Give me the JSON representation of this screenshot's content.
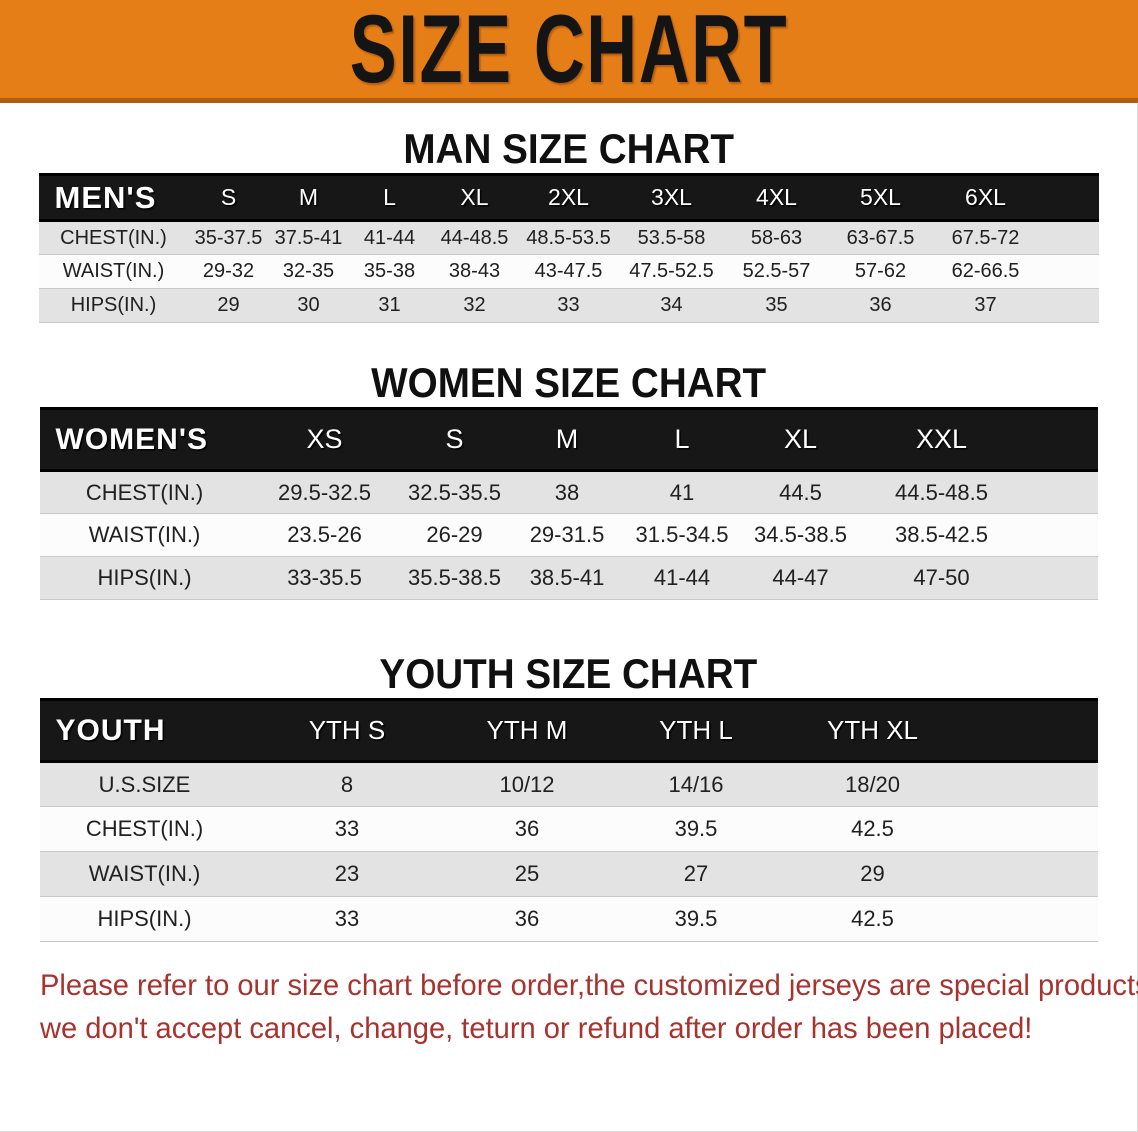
{
  "banner": {
    "title": "SIZE CHART"
  },
  "sections": [
    {
      "heading": "MAN SIZE CHART",
      "table": {
        "header_label": "MEN'S",
        "sizes": [
          "S",
          "M",
          "L",
          "XL",
          "2XL",
          "3XL",
          "4XL",
          "5XL",
          "6XL"
        ],
        "rows": [
          {
            "label": "CHEST(IN.)",
            "values": [
              "35-37.5",
              "37.5-41",
              "41-44",
              "44-48.5",
              "48.5-53.5",
              "53.5-58",
              "58-63",
              "63-67.5",
              "67.5-72"
            ]
          },
          {
            "label": "WAIST(IN.)",
            "values": [
              "29-32",
              "32-35",
              "35-38",
              "38-43",
              "43-47.5",
              "47.5-52.5",
              "52.5-57",
              "57-62",
              "62-66.5"
            ]
          },
          {
            "label": "HIPS(IN.)",
            "values": [
              "29",
              "30",
              "31",
              "32",
              "33",
              "34",
              "35",
              "36",
              "37"
            ]
          }
        ]
      }
    },
    {
      "heading": "WOMEN SIZE CHART",
      "table": {
        "header_label": "WOMEN'S",
        "sizes": [
          "XS",
          "S",
          "M",
          "L",
          "XL",
          "XXL"
        ],
        "rows": [
          {
            "label": "CHEST(IN.)",
            "values": [
              "29.5-32.5",
              "32.5-35.5",
              "38",
              "41",
              "44.5",
              "44.5-48.5"
            ]
          },
          {
            "label": "WAIST(IN.)",
            "values": [
              "23.5-26",
              "26-29",
              "29-31.5",
              "31.5-34.5",
              "34.5-38.5",
              "38.5-42.5"
            ]
          },
          {
            "label": "HIPS(IN.)",
            "values": [
              "33-35.5",
              "35.5-38.5",
              "38.5-41",
              "41-44",
              "44-47",
              "47-50"
            ]
          }
        ]
      }
    },
    {
      "heading": "YOUTH SIZE CHART",
      "table": {
        "header_label": "YOUTH",
        "sizes": [
          "YTH S",
          "YTH M",
          "YTH L",
          "YTH XL"
        ],
        "rows": [
          {
            "label": "U.S.SIZE",
            "values": [
              "8",
              "10/12",
              "14/16",
              "18/20"
            ]
          },
          {
            "label": "CHEST(IN.)",
            "values": [
              "33",
              "36",
              "39.5",
              "42.5"
            ]
          },
          {
            "label": "WAIST(IN.)",
            "values": [
              "23",
              "25",
              "27",
              "29"
            ]
          },
          {
            "label": "HIPS(IN.)",
            "values": [
              "33",
              "36",
              "39.5",
              "42.5"
            ]
          }
        ]
      }
    }
  ],
  "footer": {
    "line1": "Please refer to our size chart before order,the customized jerseys are special products,",
    "line2": "we don't accept cancel, change, teturn or refund after order has been placed!"
  },
  "colors": {
    "banner_bg": "#e67e17",
    "banner_edge": "#b25e0e",
    "header_bar": "#171717",
    "row_gray": "#e3e3e3",
    "row_white": "#fcfcfc",
    "footer_red": "#a8332e"
  }
}
